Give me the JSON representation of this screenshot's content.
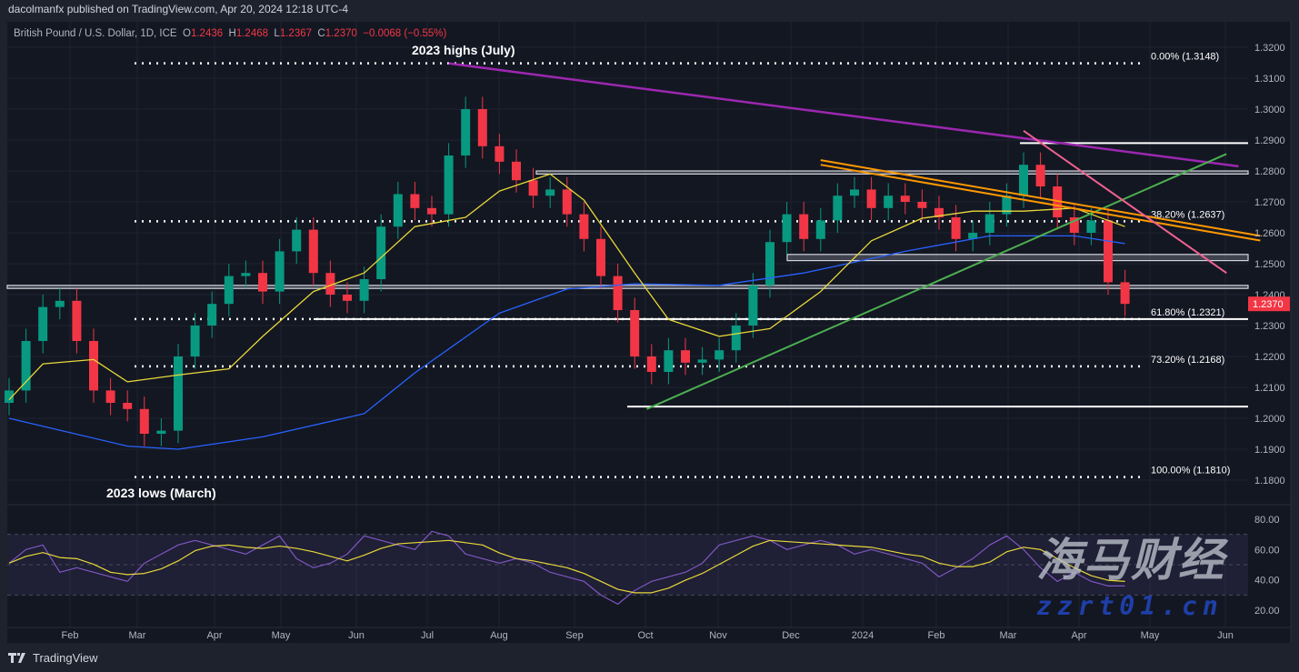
{
  "publisher": "dacolmanfx published on TradingView.com, Apr 20, 2024 12:18 UTC-4",
  "legend": {
    "symbol": "British Pound / U.S. Dollar, 1D, ICE",
    "o_label": "O",
    "o": "1.2436",
    "h_label": "H",
    "h": "1.2468",
    "l_label": "L",
    "l": "1.2367",
    "c_label": "C",
    "c": "1.2370",
    "change": "−0.0068 (−0.55%)"
  },
  "footer": {
    "brand": "TradingView"
  },
  "watermark": {
    "text1": "海马财经",
    "text2": "zzrt01.cn"
  },
  "colors": {
    "up": "#089981",
    "down": "#f23645",
    "ma_fast": "#e8d83a",
    "ma_slow": "#2962ff",
    "rsi": "#7e57c2",
    "rsi_signal": "#e8d83a",
    "purple_trend": "#9c27b0",
    "green_trend": "#4caf50",
    "orange_channel": "#ff9800",
    "pink_trend": "#f06292",
    "background": "#131722"
  },
  "chart_data": [
    {
      "type": "candlestick",
      "title": "British Pound / U.S. Dollar, 1D, ICE",
      "x_ticks": [
        "Feb",
        "Mar",
        "Apr",
        "May",
        "Jun",
        "Jul",
        "Aug",
        "Sep",
        "Oct",
        "Nov",
        "Dec",
        "2024",
        "Feb",
        "Mar",
        "Apr",
        "May",
        "Jun"
      ],
      "y_ticks": [
        "1.3200",
        "1.3100",
        "1.3000",
        "1.2900",
        "1.2800",
        "1.2700",
        "1.2600",
        "1.2500",
        "1.2400",
        "1.2300",
        "1.2200",
        "1.2100",
        "1.2000",
        "1.1900",
        "1.1800"
      ],
      "ylim": [
        1.18,
        1.32
      ],
      "last_price": "1.2370",
      "grid": true,
      "closes": [
        [
          "2023-01-13",
          1.209
        ],
        [
          "2023-01-20",
          1.225
        ],
        [
          "2023-01-27",
          1.236
        ],
        [
          "2023-02-03",
          1.238
        ],
        [
          "2023-02-10",
          1.225
        ],
        [
          "2023-02-17",
          1.209
        ],
        [
          "2023-02-24",
          1.205
        ],
        [
          "2023-03-03",
          1.203
        ],
        [
          "2023-03-10",
          1.195
        ],
        [
          "2023-03-17",
          1.196
        ],
        [
          "2023-03-24",
          1.22
        ],
        [
          "2023-03-31",
          1.23
        ],
        [
          "2023-04-07",
          1.237
        ],
        [
          "2023-04-14",
          1.246
        ],
        [
          "2023-04-21",
          1.247
        ],
        [
          "2023-04-28",
          1.241
        ],
        [
          "2023-05-05",
          1.254
        ],
        [
          "2023-05-12",
          1.261
        ],
        [
          "2023-05-19",
          1.247
        ],
        [
          "2023-05-26",
          1.24
        ],
        [
          "2023-06-02",
          1.238
        ],
        [
          "2023-06-09",
          1.245
        ],
        [
          "2023-06-16",
          1.262
        ],
        [
          "2023-06-23",
          1.2725
        ],
        [
          "2023-06-30",
          1.268
        ],
        [
          "2023-07-07",
          1.266
        ],
        [
          "2023-07-14",
          1.285
        ],
        [
          "2023-07-21",
          1.3
        ],
        [
          "2023-07-28",
          1.288
        ],
        [
          "2023-08-04",
          1.283
        ],
        [
          "2023-08-11",
          1.277
        ],
        [
          "2023-08-18",
          1.272
        ],
        [
          "2023-08-25",
          1.274
        ],
        [
          "2023-09-01",
          1.266
        ],
        [
          "2023-09-08",
          1.258
        ],
        [
          "2023-09-15",
          1.246
        ],
        [
          "2023-09-22",
          1.235
        ],
        [
          "2023-09-29",
          1.22
        ],
        [
          "2023-10-06",
          1.215
        ],
        [
          "2023-10-13",
          1.222
        ],
        [
          "2023-10-20",
          1.218
        ],
        [
          "2023-10-27",
          1.219
        ],
        [
          "2023-11-03",
          1.222
        ],
        [
          "2023-11-10",
          1.23
        ],
        [
          "2023-11-17",
          1.243
        ],
        [
          "2023-11-24",
          1.257
        ],
        [
          "2023-12-01",
          1.266
        ],
        [
          "2023-12-08",
          1.258
        ],
        [
          "2023-12-15",
          1.264
        ],
        [
          "2023-12-22",
          1.272
        ],
        [
          "2023-12-29",
          1.274
        ],
        [
          "2024-01-05",
          1.268
        ],
        [
          "2024-01-12",
          1.272
        ],
        [
          "2024-01-19",
          1.27
        ],
        [
          "2024-01-26",
          1.268
        ],
        [
          "2024-02-02",
          1.265
        ],
        [
          "2024-02-09",
          1.258
        ],
        [
          "2024-02-16",
          1.26
        ],
        [
          "2024-02-23",
          1.266
        ],
        [
          "2024-03-01",
          1.272
        ],
        [
          "2024-03-08",
          1.282
        ],
        [
          "2024-03-15",
          1.275
        ],
        [
          "2024-03-22",
          1.265
        ],
        [
          "2024-03-29",
          1.26
        ],
        [
          "2024-04-05",
          1.264
        ],
        [
          "2024-04-12",
          1.244
        ],
        [
          "2024-04-19",
          1.237
        ]
      ],
      "ma_fast": [
        [
          "2023-01-13",
          1.206
        ],
        [
          "2023-01-27",
          1.2176
        ],
        [
          "2023-02-17",
          1.219
        ],
        [
          "2023-03-03",
          1.2118
        ],
        [
          "2023-03-24",
          1.214
        ],
        [
          "2023-04-14",
          1.216
        ],
        [
          "2023-04-28",
          1.2265
        ],
        [
          "2023-05-19",
          1.241
        ],
        [
          "2023-06-09",
          1.247
        ],
        [
          "2023-06-30",
          1.262
        ],
        [
          "2023-07-21",
          1.265
        ],
        [
          "2023-08-04",
          1.2735
        ],
        [
          "2023-08-25",
          1.279
        ],
        [
          "2023-09-08",
          1.2706
        ],
        [
          "2023-09-29",
          1.247
        ],
        [
          "2023-10-13",
          1.232
        ],
        [
          "2023-11-03",
          1.2265
        ],
        [
          "2023-11-24",
          1.229
        ],
        [
          "2023-12-15",
          1.241
        ],
        [
          "2024-01-05",
          1.2574
        ],
        [
          "2024-01-26",
          1.2647
        ],
        [
          "2024-02-16",
          1.267
        ],
        [
          "2024-03-08",
          1.267
        ],
        [
          "2024-03-29",
          1.268
        ],
        [
          "2024-04-19",
          1.262
        ]
      ],
      "ma_slow": [
        [
          "2023-01-13",
          1.2
        ],
        [
          "2023-03-03",
          1.191
        ],
        [
          "2023-03-24",
          1.19
        ],
        [
          "2023-04-28",
          1.194
        ],
        [
          "2023-06-09",
          1.2015
        ],
        [
          "2023-06-30",
          1.2147
        ],
        [
          "2023-08-04",
          1.234
        ],
        [
          "2023-09-01",
          1.2418
        ],
        [
          "2023-09-29",
          1.2435
        ],
        [
          "2023-11-03",
          1.243
        ],
        [
          "2023-12-08",
          1.247
        ],
        [
          "2024-01-19",
          1.254
        ],
        [
          "2024-02-23",
          1.259
        ],
        [
          "2024-03-29",
          1.259
        ],
        [
          "2024-04-19",
          1.2565
        ]
      ],
      "fib_levels": [
        {
          "label": "0.00% (1.3148)",
          "value": 1.3148
        },
        {
          "label": "38.20% (1.2637)",
          "value": 1.2637
        },
        {
          "label": "61.80% (1.2321)",
          "value": 1.2321
        },
        {
          "label": "73.20% (1.2168)",
          "value": 1.2168
        },
        {
          "label": "100.00% (1.1810)",
          "value": 1.181
        }
      ],
      "horizontal_levels": [
        1.289,
        1.2321,
        1.2038
      ],
      "zones": [
        [
          1.279,
          1.28
        ],
        [
          1.251,
          1.253
        ],
        [
          1.242,
          1.243
        ]
      ],
      "trendlines": [
        {
          "color": "purple_trend",
          "from": [
            "2023-07-14",
            1.3148
          ],
          "to": [
            "2024-06-05",
            1.2815
          ]
        },
        {
          "color": "green_trend",
          "from": [
            "2023-10-04",
            1.203
          ],
          "to": [
            "2024-05-31",
            1.2855
          ]
        },
        {
          "color": "orange_channel",
          "from": [
            "2023-12-15",
            1.2835
          ],
          "to": [
            "2024-06-14",
            1.259
          ]
        },
        {
          "color": "orange_channel",
          "from": [
            "2023-12-15",
            1.282
          ],
          "to": [
            "2024-06-14",
            1.2575
          ]
        },
        {
          "color": "pink_trend",
          "from": [
            "2024-03-08",
            1.293
          ],
          "to": [
            "2024-05-31",
            1.247
          ]
        }
      ],
      "annotations": [
        {
          "text": "2023 highs (July)",
          "at": [
            "2023-07-14",
            1.3148
          ]
        },
        {
          "text": "2023 lows (March)",
          "at": [
            "2023-03-10",
            1.181
          ]
        }
      ]
    },
    {
      "type": "line",
      "title": "RSI",
      "y_ticks": [
        "80.00",
        "60.00",
        "40.00",
        "20.00"
      ],
      "ylim": [
        17,
        83
      ],
      "bands": [
        30,
        50,
        70
      ],
      "rsi": [
        51,
        60,
        63,
        45,
        48,
        45,
        42,
        39,
        51,
        57,
        63,
        66,
        63,
        60,
        57,
        63,
        69,
        54,
        48,
        51,
        57,
        69,
        66,
        63,
        60,
        72,
        69,
        57,
        54,
        51,
        54,
        51,
        45,
        42,
        39,
        30,
        24,
        33,
        39,
        42,
        45,
        51,
        63,
        66,
        69,
        66,
        60,
        63,
        66,
        63,
        57,
        60,
        57,
        54,
        51,
        42,
        48,
        54,
        63,
        69,
        60,
        48,
        39,
        45,
        39,
        36,
        36
      ]
    }
  ]
}
